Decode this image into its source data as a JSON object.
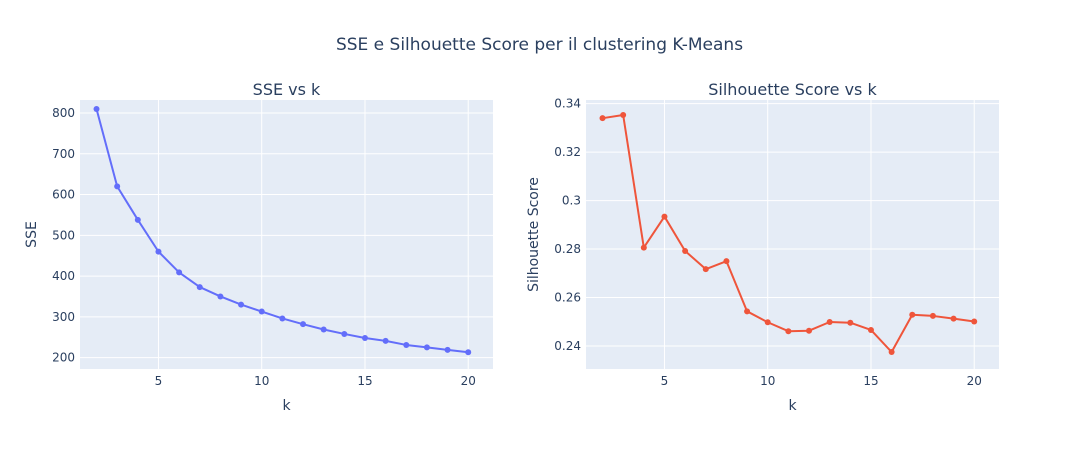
{
  "figure": {
    "title": "SSE e Silhouette Score per il clustering K-Means"
  },
  "chart_data": [
    {
      "type": "line",
      "title": "SSE vs k",
      "xlabel": "k",
      "ylabel": "SSE",
      "color": "#636efa",
      "grid": true,
      "xlim": [
        1.2,
        21.2
      ],
      "ylim": [
        172,
        832
      ],
      "xticks": [
        5,
        10,
        15,
        20
      ],
      "yticks": [
        200,
        300,
        400,
        500,
        600,
        700,
        800
      ],
      "ytick_labels": [
        "200",
        "300",
        "400",
        "500",
        "600",
        "700",
        "800"
      ],
      "series": [
        {
          "x": [
            2,
            3,
            4,
            5,
            6,
            7,
            8,
            9,
            10,
            11,
            12,
            13,
            14,
            15,
            16,
            17,
            18,
            19,
            20
          ],
          "y": [
            810,
            620,
            538,
            460,
            409,
            373,
            350,
            330,
            313,
            296,
            282,
            269,
            258,
            248,
            241,
            231,
            225,
            219,
            213
          ]
        }
      ]
    },
    {
      "type": "line",
      "title": "Silhouette Score vs k",
      "xlabel": "k",
      "ylabel": "Silhouette Score",
      "color": "#ef553b",
      "grid": true,
      "xlim": [
        1.2,
        21.2
      ],
      "ylim": [
        0.2305,
        0.3415
      ],
      "xticks": [
        5,
        10,
        15,
        20
      ],
      "yticks": [
        0.24,
        0.26,
        0.28,
        0.3,
        0.32,
        0.34
      ],
      "ytick_labels": [
        "0.24",
        "0.26",
        "0.28",
        "0.3",
        "0.32",
        "0.34"
      ],
      "series": [
        {
          "x": [
            2,
            3,
            4,
            5,
            6,
            7,
            8,
            9,
            10,
            11,
            12,
            13,
            14,
            15,
            16,
            17,
            18,
            19,
            20
          ],
          "y": [
            0.334,
            0.3353,
            0.2806,
            0.2934,
            0.2792,
            0.2717,
            0.275,
            0.2543,
            0.2498,
            0.2461,
            0.2463,
            0.2499,
            0.2496,
            0.2466,
            0.2375,
            0.2529,
            0.2524,
            0.2513,
            0.2501
          ]
        }
      ]
    }
  ]
}
